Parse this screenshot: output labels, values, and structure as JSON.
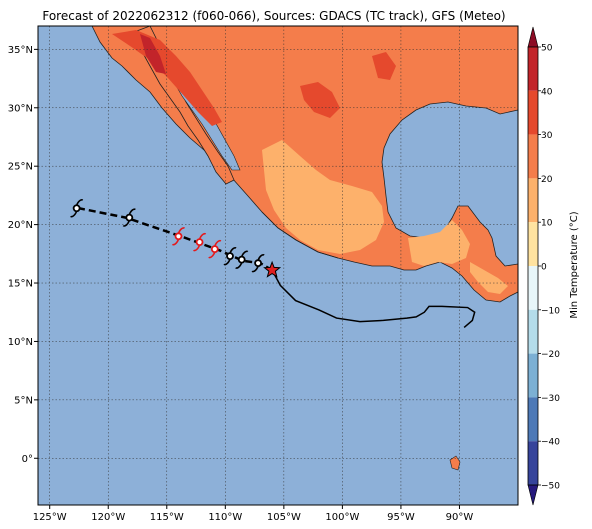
{
  "title": "Forecast of 2022062312 (f060-066), Sources: GDACS (TC track), GFS (Meteo)",
  "map": {
    "lon_range": [
      -126,
      -85
    ],
    "lat_range": [
      -4,
      37
    ],
    "x_ticks": [
      {
        "lon": -125,
        "label": "125°W"
      },
      {
        "lon": -120,
        "label": "120°W"
      },
      {
        "lon": -115,
        "label": "115°W"
      },
      {
        "lon": -110,
        "label": "110°W"
      },
      {
        "lon": -105,
        "label": "105°W"
      },
      {
        "lon": -100,
        "label": "100°W"
      },
      {
        "lon": -95,
        "label": "95°W"
      },
      {
        "lon": -90,
        "label": "90°W"
      }
    ],
    "y_ticks": [
      {
        "lat": 35,
        "label": "35°N"
      },
      {
        "lat": 30,
        "label": "30°N"
      },
      {
        "lat": 25,
        "label": "25°N"
      },
      {
        "lat": 20,
        "label": "20°N"
      },
      {
        "lat": 15,
        "label": "15°N"
      },
      {
        "lat": 10,
        "label": "10°N"
      },
      {
        "lat": 5,
        "label": "5°N"
      },
      {
        "lat": 0,
        "label": "0°"
      }
    ],
    "ocean_color": "#8db0d8",
    "gridlines": "dotted"
  },
  "colorbar": {
    "label": "Min Temperature (°C)",
    "ticks": [
      "50",
      "40",
      "30",
      "20",
      "10",
      "0",
      "−10",
      "−20",
      "−30",
      "−40",
      "−50"
    ],
    "colors": [
      "#8c0c25",
      "#c2242a",
      "#e5492d",
      "#f47d4b",
      "#fdb16b",
      "#ffe3a0",
      "#e8f6f9",
      "#b4dcea",
      "#7cb0d4",
      "#4d79b7",
      "#36449b",
      "#26197d"
    ]
  },
  "track": {
    "storm_center": {
      "lon": -106.0,
      "lat": 16.1
    },
    "past_track": [
      [
        -106.0,
        16.1
      ],
      [
        -105.3,
        14.8
      ],
      [
        -104.0,
        13.5
      ],
      [
        -102.0,
        12.7
      ],
      [
        -100.5,
        12.0
      ],
      [
        -98.5,
        11.7
      ],
      [
        -96.5,
        11.8
      ],
      [
        -94.5,
        12.0
      ],
      [
        -93.7,
        12.1
      ],
      [
        -93.0,
        12.5
      ],
      [
        -92.6,
        13.0
      ],
      [
        -91.5,
        13.0
      ],
      [
        -89.3,
        12.9
      ],
      [
        -88.7,
        12.5
      ],
      [
        -88.9,
        11.8
      ],
      [
        -89.6,
        11.2
      ]
    ],
    "forecast_track": [
      [
        -106.0,
        16.1
      ],
      [
        -107.0,
        16.7
      ],
      [
        -108.5,
        16.9
      ],
      [
        -110.5,
        17.8
      ],
      [
        -113.8,
        19.0
      ],
      [
        -118.5,
        20.6
      ],
      [
        -122.5,
        21.4
      ]
    ],
    "symbols": [
      {
        "lon": -107.2,
        "lat": 16.7,
        "color": "black"
      },
      {
        "lon": -108.6,
        "lat": 17.0,
        "color": "black"
      },
      {
        "lon": -109.6,
        "lat": 17.3,
        "color": "black"
      },
      {
        "lon": -110.9,
        "lat": 17.9,
        "color": "red"
      },
      {
        "lon": -112.2,
        "lat": 18.5,
        "color": "red"
      },
      {
        "lon": -114.0,
        "lat": 19.0,
        "color": "red"
      },
      {
        "lon": -118.2,
        "lat": 20.6,
        "color": "black"
      },
      {
        "lon": -122.7,
        "lat": 21.4,
        "color": "black"
      }
    ],
    "star_color": "#e02020"
  }
}
